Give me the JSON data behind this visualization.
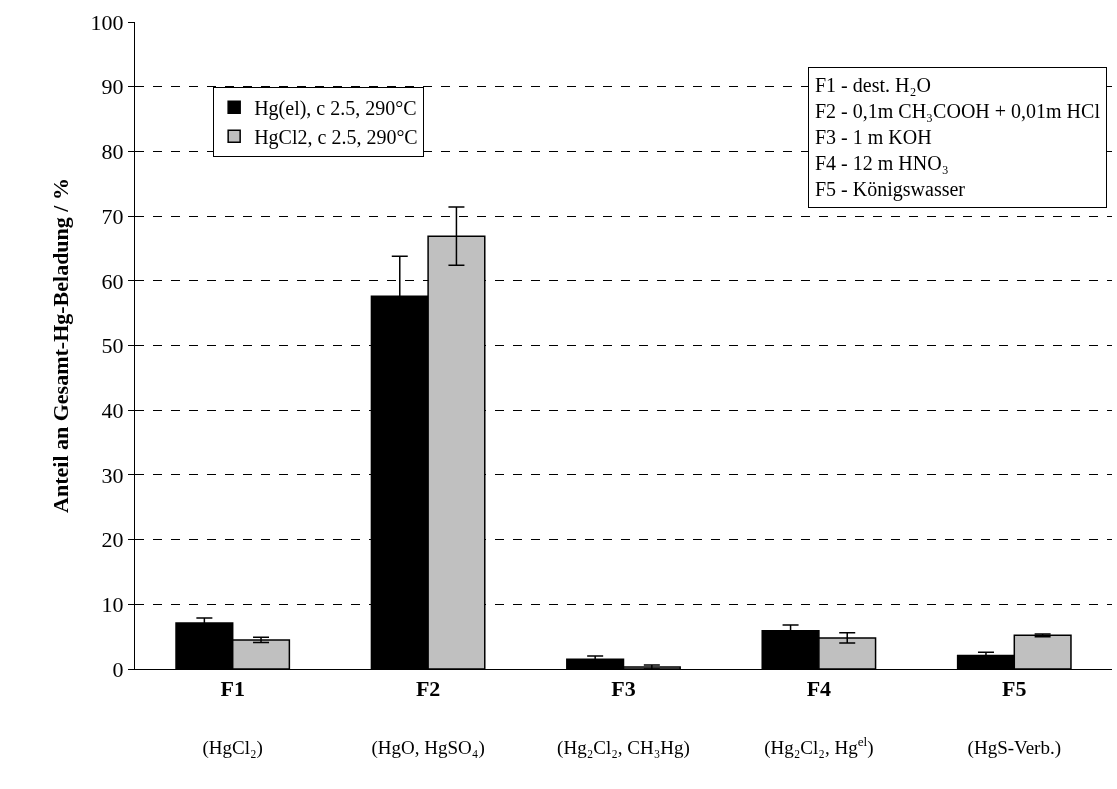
{
  "chart_data": {
    "type": "bar",
    "ylabel": "Anteil an Gesamt-Hg-Beladung / %",
    "categories": [
      "F1\n(HgCl₂)",
      "F2\n(HgO, HgSO₄)",
      "F3\n(Hg₂Cl₂, CH₃Hg)",
      "F4\n(Hg₂Cl₂, Hg$^{el}$)",
      "F5\n(HgS-Verb.)"
    ],
    "series": [
      {
        "name": "Hg(el), c 2.5, 290°C",
        "color": "#000000",
        "values": [
          7.1,
          57.6,
          1.5,
          5.9,
          2.1
        ],
        "errors": [
          0.8,
          6.2,
          0.5,
          0.9,
          0.5
        ]
      },
      {
        "name": "HgCl2, c 2.5, 290°C",
        "color": "#c0c0c0",
        "values": [
          4.5,
          66.9,
          0.3,
          4.8,
          5.2
        ],
        "errors": [
          0.4,
          4.5,
          0.3,
          0.8,
          0.2
        ]
      }
    ],
    "ylim": [
      0,
      100
    ],
    "yticks": [
      0,
      10,
      20,
      30,
      40,
      50,
      60,
      70,
      80,
      90,
      100
    ],
    "grid": "y",
    "legend": "top left",
    "annotations": [
      "F1 - dest. H₂O\nF2 - 0,1m CH₃COOH + 0,01m HCl\nF3 - 1 m KOH\nF4 - 12 m HNO₃\nF5 - Königswasser"
    ]
  }
}
